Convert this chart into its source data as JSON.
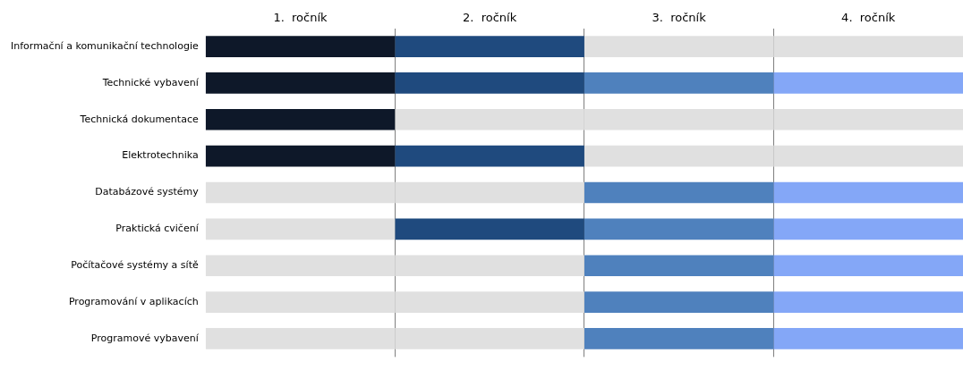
{
  "chart_data": {
    "type": "bar",
    "orientation": "horizontal",
    "stacked": true,
    "grid": "x",
    "categories": [
      "Informační a komunikační technologie",
      "Technické vybavení",
      "Technická dokumentace",
      "Elektrotechnika",
      "Databázové systémy",
      "Praktická cvičení",
      "Počítačové systémy a sítě",
      "Programování v aplikacích",
      "Programové vybavení"
    ],
    "xlim": [
      0,
      4
    ],
    "xticks": [
      {
        "value": 0.5,
        "label": "1.  ročník"
      },
      {
        "value": 1,
        "label": null
      },
      {
        "value": 1.5,
        "label": "2.  ročník"
      },
      {
        "value": 2,
        "label": null
      },
      {
        "value": 2.5,
        "label": "3.  ročník"
      },
      {
        "value": 3,
        "label": null
      },
      {
        "value": 3.5,
        "label": "4.  ročník"
      }
    ],
    "series": [
      {
        "values": [
          1,
          1,
          1,
          1,
          1,
          1,
          1,
          1,
          1
        ],
        "colors": [
          "#0e1829",
          "#0e1829",
          "#0e1829",
          "#0e1829",
          "#e0e0e0",
          "#e0e0e0",
          "#e0e0e0",
          "#e0e0e0",
          "#e0e0e0"
        ]
      },
      {
        "values": [
          1,
          1,
          1,
          1,
          1,
          1,
          1,
          1,
          1
        ],
        "colors": [
          "#1f4a7e",
          "#1f4a7e",
          "#e0e0e0",
          "#1f4a7e",
          "#e0e0e0",
          "#1f4a7e",
          "#e0e0e0",
          "#e0e0e0",
          "#e0e0e0"
        ]
      },
      {
        "values": [
          1,
          1,
          1,
          1,
          1,
          1,
          1,
          1,
          1
        ],
        "colors": [
          "#e0e0e0",
          "#4f81bd",
          "#e0e0e0",
          "#e0e0e0",
          "#4f81bd",
          "#4f81bd",
          "#4f81bd",
          "#4f81bd",
          "#4f81bd"
        ]
      },
      {
        "values": [
          1,
          1,
          1,
          1,
          1,
          1,
          1,
          1,
          1
        ],
        "colors": [
          "#e0e0e0",
          "#84a7f7",
          "#e0e0e0",
          "#e0e0e0",
          "#84a7f7",
          "#84a7f7",
          "#84a7f7",
          "#84a7f7",
          "#84a7f7"
        ]
      }
    ]
  }
}
